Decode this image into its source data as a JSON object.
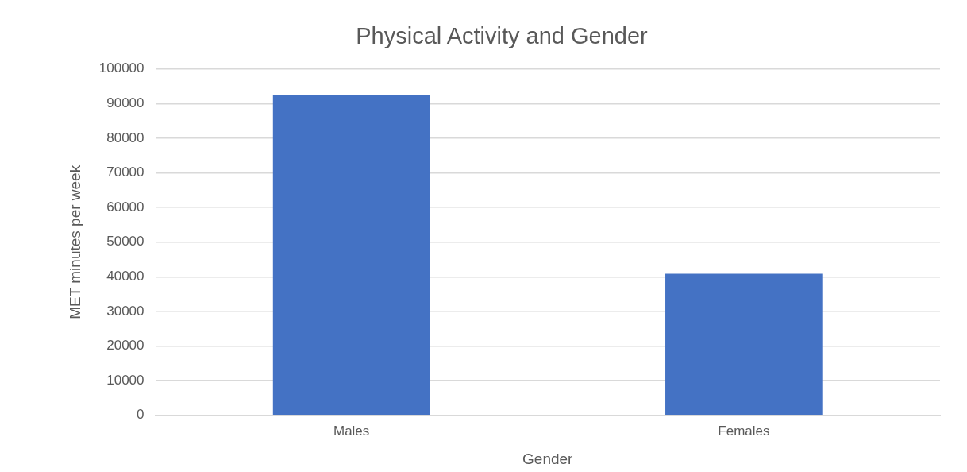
{
  "chart_data": {
    "type": "bar",
    "title": "Physical Activity and Gender",
    "xlabel": "Gender",
    "ylabel": "MET minutes per week",
    "categories": [
      "Males",
      "Females"
    ],
    "series": [
      {
        "color": "#4472c4",
        "values": [
          92600,
          40900
        ]
      }
    ],
    "ylim": [
      0,
      100000
    ],
    "yticks": [
      0,
      10000,
      20000,
      30000,
      40000,
      50000,
      60000,
      70000,
      80000,
      90000,
      100000
    ],
    "grid": "y",
    "legend": false
  }
}
